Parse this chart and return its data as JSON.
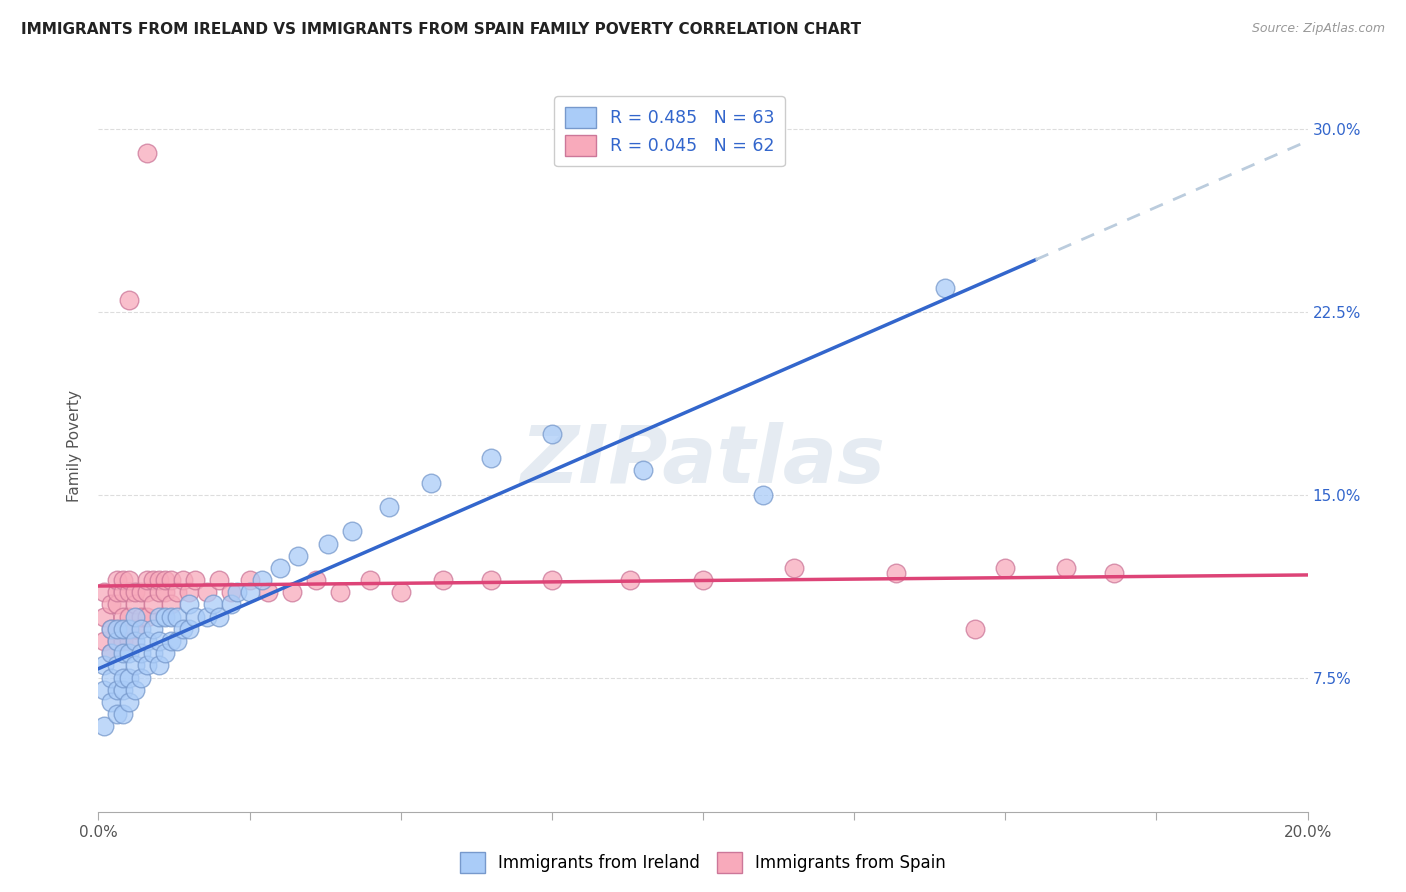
{
  "title": "IMMIGRANTS FROM IRELAND VS IMMIGRANTS FROM SPAIN FAMILY POVERTY CORRELATION CHART",
  "source": "Source: ZipAtlas.com",
  "ylabel": "Family Poverty",
  "yticks_labels": [
    "7.5%",
    "15.0%",
    "22.5%",
    "30.0%"
  ],
  "ytick_vals": [
    0.075,
    0.15,
    0.225,
    0.3
  ],
  "xlim": [
    0.0,
    0.2
  ],
  "ylim": [
    0.02,
    0.32
  ],
  "ireland_color": "#aaccf8",
  "ireland_edge": "#7799cc",
  "spain_color": "#f8aabb",
  "spain_edge": "#cc7799",
  "trend_ireland_color": "#3366cc",
  "trend_spain_color": "#dd4477",
  "trend_ext_color": "#bbccdd",
  "legend_ireland_label": "R = 0.485   N = 63",
  "legend_spain_label": "R = 0.045   N = 62",
  "bottom_legend_ireland": "Immigrants from Ireland",
  "bottom_legend_spain": "Immigrants from Spain",
  "watermark": "ZIPatlas",
  "background_color": "#ffffff",
  "grid_color": "#dddddd",
  "ireland_x": [
    0.001,
    0.001,
    0.001,
    0.002,
    0.002,
    0.002,
    0.002,
    0.003,
    0.003,
    0.003,
    0.003,
    0.003,
    0.004,
    0.004,
    0.004,
    0.004,
    0.004,
    0.005,
    0.005,
    0.005,
    0.005,
    0.006,
    0.006,
    0.006,
    0.006,
    0.007,
    0.007,
    0.007,
    0.008,
    0.008,
    0.009,
    0.009,
    0.01,
    0.01,
    0.01,
    0.011,
    0.011,
    0.012,
    0.012,
    0.013,
    0.013,
    0.014,
    0.015,
    0.015,
    0.016,
    0.018,
    0.019,
    0.02,
    0.022,
    0.023,
    0.025,
    0.027,
    0.03,
    0.033,
    0.038,
    0.042,
    0.048,
    0.055,
    0.065,
    0.075,
    0.09,
    0.11,
    0.14
  ],
  "ireland_y": [
    0.055,
    0.07,
    0.08,
    0.065,
    0.075,
    0.085,
    0.095,
    0.06,
    0.07,
    0.08,
    0.09,
    0.095,
    0.06,
    0.07,
    0.075,
    0.085,
    0.095,
    0.065,
    0.075,
    0.085,
    0.095,
    0.07,
    0.08,
    0.09,
    0.1,
    0.075,
    0.085,
    0.095,
    0.08,
    0.09,
    0.085,
    0.095,
    0.08,
    0.09,
    0.1,
    0.085,
    0.1,
    0.09,
    0.1,
    0.09,
    0.1,
    0.095,
    0.095,
    0.105,
    0.1,
    0.1,
    0.105,
    0.1,
    0.105,
    0.11,
    0.11,
    0.115,
    0.12,
    0.125,
    0.13,
    0.135,
    0.145,
    0.155,
    0.165,
    0.175,
    0.16,
    0.15,
    0.235
  ],
  "spain_x": [
    0.001,
    0.001,
    0.001,
    0.002,
    0.002,
    0.002,
    0.003,
    0.003,
    0.003,
    0.003,
    0.003,
    0.004,
    0.004,
    0.004,
    0.004,
    0.005,
    0.005,
    0.005,
    0.005,
    0.006,
    0.006,
    0.006,
    0.007,
    0.007,
    0.008,
    0.008,
    0.008,
    0.009,
    0.009,
    0.01,
    0.01,
    0.011,
    0.011,
    0.012,
    0.012,
    0.013,
    0.014,
    0.015,
    0.016,
    0.018,
    0.02,
    0.022,
    0.025,
    0.028,
    0.032,
    0.036,
    0.04,
    0.045,
    0.05,
    0.057,
    0.065,
    0.075,
    0.088,
    0.1,
    0.115,
    0.132,
    0.15,
    0.168,
    0.005,
    0.008,
    0.16,
    0.145
  ],
  "spain_y": [
    0.09,
    0.1,
    0.11,
    0.085,
    0.095,
    0.105,
    0.09,
    0.095,
    0.105,
    0.11,
    0.115,
    0.09,
    0.1,
    0.11,
    0.115,
    0.09,
    0.1,
    0.11,
    0.115,
    0.095,
    0.105,
    0.11,
    0.1,
    0.11,
    0.1,
    0.11,
    0.115,
    0.105,
    0.115,
    0.11,
    0.115,
    0.11,
    0.115,
    0.105,
    0.115,
    0.11,
    0.115,
    0.11,
    0.115,
    0.11,
    0.115,
    0.11,
    0.115,
    0.11,
    0.11,
    0.115,
    0.11,
    0.115,
    0.11,
    0.115,
    0.115,
    0.115,
    0.115,
    0.115,
    0.12,
    0.118,
    0.12,
    0.118,
    0.23,
    0.29,
    0.12,
    0.095
  ],
  "xtick_positions": [
    0.0,
    0.025,
    0.05,
    0.075,
    0.1,
    0.125,
    0.15,
    0.175,
    0.2
  ],
  "xtick_show_labels": [
    true,
    false,
    false,
    false,
    false,
    false,
    false,
    false,
    true
  ]
}
